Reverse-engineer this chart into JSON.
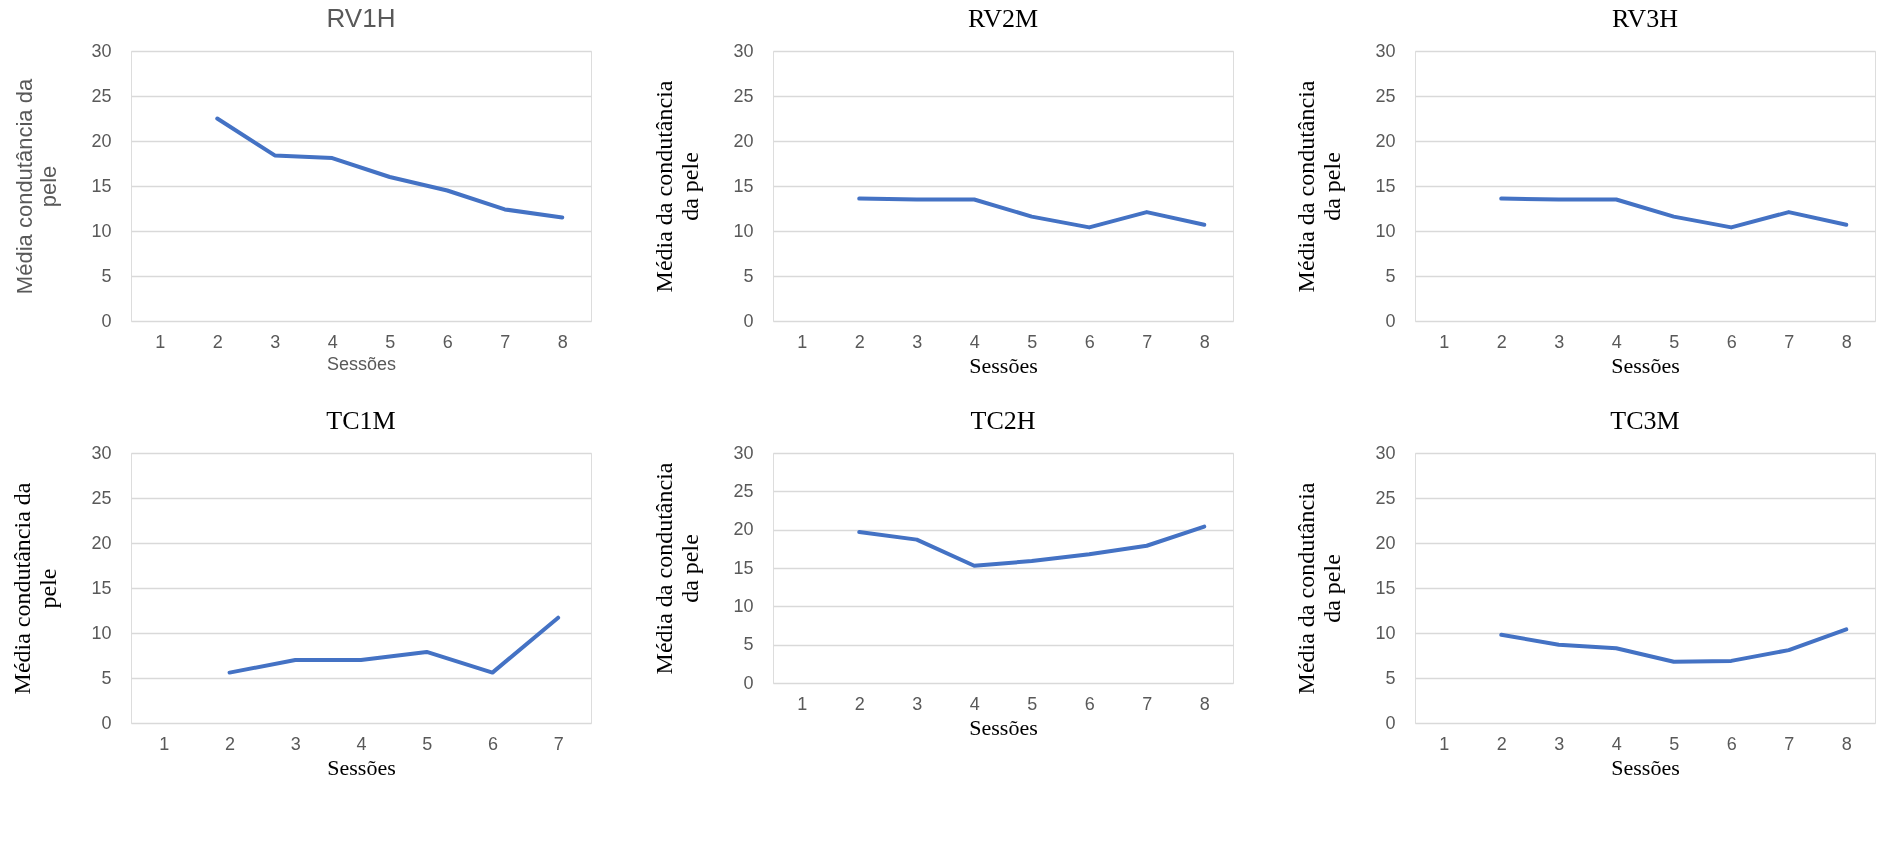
{
  "chart_data": [
    {
      "type": "line",
      "title": "RV1H",
      "xlabel": "Sessões",
      "ylabel": "Média condutância da\npele",
      "categories": [
        "1",
        "2",
        "3",
        "4",
        "5",
        "6",
        "7",
        "8"
      ],
      "series": [
        {
          "color": "#4472c4",
          "values": [
            null,
            22.5,
            18.4,
            18.1,
            16.0,
            14.5,
            12.4,
            11.5
          ]
        }
      ],
      "ylim": [
        0,
        30
      ],
      "yticks": [
        0,
        5,
        10,
        15,
        20,
        25,
        30
      ],
      "grid": "y",
      "legend": false,
      "marker": "none",
      "line_style": "solid"
    },
    {
      "type": "line",
      "title": "RV2M",
      "xlabel": "Sessões",
      "ylabel": "Média da condutância\nda pele",
      "categories": [
        "1",
        "2",
        "3",
        "4",
        "5",
        "6",
        "7",
        "8"
      ],
      "series": [
        {
          "color": "#4472c4",
          "values": [
            null,
            13.6,
            13.5,
            13.5,
            11.6,
            10.4,
            12.1,
            10.7
          ]
        }
      ],
      "ylim": [
        0,
        30
      ],
      "yticks": [
        0,
        5,
        10,
        15,
        20,
        25,
        30
      ],
      "grid": "y",
      "legend": false,
      "marker": "none",
      "line_style": "solid"
    },
    {
      "type": "line",
      "title": "RV3H",
      "xlabel": "Sessões",
      "ylabel": "Média da condutância\nda pele",
      "categories": [
        "1",
        "2",
        "3",
        "4",
        "5",
        "6",
        "7",
        "8"
      ],
      "series": [
        {
          "color": "#4472c4",
          "values": [
            null,
            13.6,
            13.5,
            13.5,
            11.6,
            10.4,
            12.1,
            10.7
          ]
        }
      ],
      "ylim": [
        0,
        30
      ],
      "yticks": [
        0,
        5,
        10,
        15,
        20,
        25,
        30
      ],
      "grid": "y",
      "legend": false,
      "marker": "none",
      "line_style": "solid"
    },
    {
      "type": "line",
      "title": "TC1M",
      "xlabel": "Sessões",
      "ylabel": "Média condutância da\npele",
      "categories": [
        "1",
        "2",
        "3",
        "4",
        "5",
        "6",
        "7"
      ],
      "series": [
        {
          "color": "#4472c4",
          "values": [
            null,
            5.6,
            7.0,
            7.0,
            7.9,
            5.6,
            11.7
          ]
        }
      ],
      "ylim": [
        0,
        30
      ],
      "yticks": [
        0,
        5,
        10,
        15,
        20,
        25,
        30
      ],
      "grid": "y",
      "legend": false,
      "marker": "none",
      "line_style": "solid"
    },
    {
      "type": "line",
      "title": "TC2H",
      "xlabel": "Sessões",
      "ylabel": "Média da condutância\nda pele",
      "categories": [
        "1",
        "2",
        "3",
        "4",
        "5",
        "6",
        "7",
        "8"
      ],
      "series": [
        {
          "color": "#4472c4",
          "values": [
            null,
            19.7,
            18.7,
            15.3,
            15.9,
            16.8,
            17.9,
            20.4
          ]
        }
      ],
      "ylim": [
        0,
        30
      ],
      "yticks": [
        0,
        5,
        10,
        15,
        20,
        25,
        30
      ],
      "grid": "y",
      "legend": false,
      "marker": "none",
      "line_style": "solid"
    },
    {
      "type": "line",
      "title": "TC3M",
      "xlabel": "Sessões",
      "ylabel": "Média da condutância\nda pele",
      "categories": [
        "1",
        "2",
        "3",
        "4",
        "5",
        "6",
        "7",
        "8"
      ],
      "series": [
        {
          "color": "#4472c4",
          "values": [
            null,
            9.8,
            8.7,
            8.3,
            6.8,
            6.9,
            8.1,
            10.4
          ]
        }
      ],
      "ylim": [
        0,
        30
      ],
      "yticks": [
        0,
        5,
        10,
        15,
        20,
        25,
        30
      ],
      "grid": "y",
      "legend": false,
      "marker": "none",
      "line_style": "solid"
    }
  ]
}
